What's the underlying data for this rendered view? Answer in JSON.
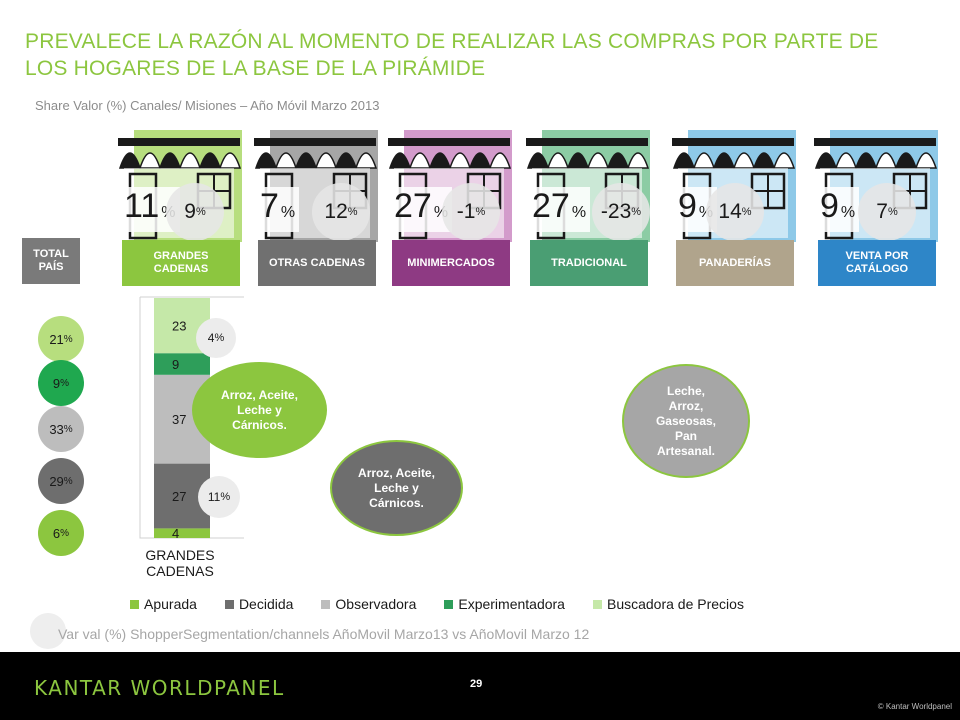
{
  "title": "PREVALECE LA RAZÓN AL MOMENTO DE REALIZAR LAS COMPRAS POR PARTE DE LOS HOGARES DE LA BASE DE LA PIRÁMIDE",
  "subtitle": "Share Valor (%) Canales/ Misiones – Año Móvil Marzo 2013",
  "total_label": "TOTAL PAÍS",
  "channels": [
    {
      "label": "GRANDES CADENAS",
      "share": "11",
      "var": "9",
      "color": "#8cc63f",
      "store_bg": "#b7de7e"
    },
    {
      "label": "OTRAS CADENAS",
      "share": "7",
      "var": "12",
      "color": "#707070",
      "store_bg": "#a6a6a6"
    },
    {
      "label": "MINIMERCADOS",
      "share": "27",
      "var": "-1",
      "color": "#8e3a83",
      "store_bg": "#d39bcb"
    },
    {
      "label": "TRADICIONAL",
      "share": "27",
      "var": "-23",
      "color": "#4a9e73",
      "store_bg": "#8ccca4"
    },
    {
      "label": "PANADERÍAS",
      "share": "9",
      "var": "14",
      "color": "#b0a48c",
      "store_bg": "#8ec9e8"
    },
    {
      "label": "VENTA POR CATÁLOGO",
      "share": "9",
      "var": "7",
      "color": "#2e86c8",
      "store_bg": "#8ec9e8"
    }
  ],
  "segments": [
    {
      "value": "21",
      "color": "#b7de7e"
    },
    {
      "value": "9",
      "color": "#1fa84f"
    },
    {
      "value": "33",
      "color": "#bdbdbd"
    },
    {
      "value": "29",
      "color": "#6e6e6e"
    },
    {
      "value": "6",
      "color": "#8cc63f"
    }
  ],
  "bar_var": {
    "top": "4",
    "bottom": "11"
  },
  "bubbles": [
    {
      "text": "Arroz, Aceite, Leche y Cárnicos.",
      "bg": "#8cc63f",
      "fg": "#ffffff"
    },
    {
      "text": "Arroz, Aceite, Leche y Cárnicos.",
      "bg": "#6e6e6e",
      "fg": "#ffffff"
    },
    {
      "text": "Leche, Arroz, Gaseosas, Pan Artesanal.",
      "bg": "#a6a6a6",
      "fg": "#ffffff"
    }
  ],
  "chart_data": {
    "type": "bar",
    "stacked": true,
    "categories": [
      "GRANDES CADENAS"
    ],
    "series": [
      {
        "name": "Apurada",
        "values": [
          4
        ],
        "color": "#8cc63f"
      },
      {
        "name": "Decidida",
        "values": [
          27
        ],
        "color": "#6e6e6e"
      },
      {
        "name": "Observadora",
        "values": [
          37
        ],
        "color": "#bdbdbd"
      },
      {
        "name": "Experimentadora",
        "values": [
          9
        ],
        "color": "#2e9e5a"
      },
      {
        "name": "Buscadora de Precios",
        "values": [
          23
        ],
        "color": "#c5e8a8"
      }
    ],
    "ylim": [
      0,
      100
    ],
    "legend": "bottom"
  },
  "footnote": "Var val (%) ShopperSegmentation/channels AñoMovil Marzo13 vs AñoMovil Marzo 12",
  "footer": {
    "logo": "KANTAR WORLDPANEL",
    "page": "29",
    "copyright": "© Kantar Worldpanel"
  }
}
